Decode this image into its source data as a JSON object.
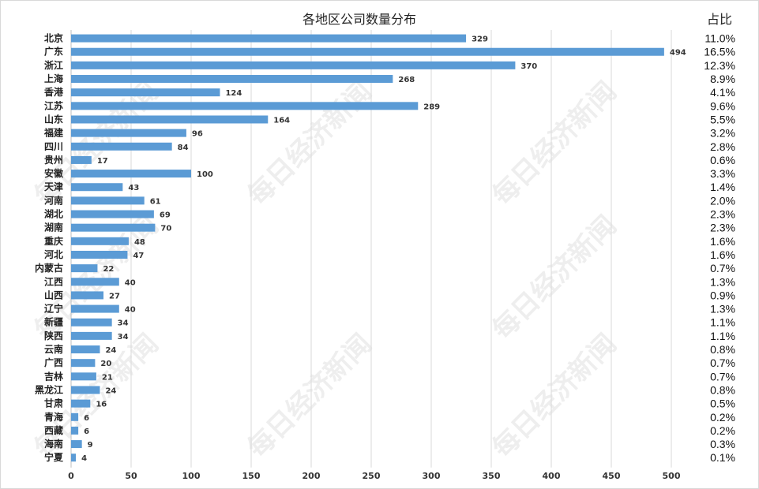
{
  "chart_data": {
    "type": "bar",
    "orientation": "horizontal",
    "title": "各地区公司数量分布",
    "share_header": "占比",
    "categories": [
      "北京",
      "广东",
      "浙江",
      "上海",
      "香港",
      "江苏",
      "山东",
      "福建",
      "四川",
      "贵州",
      "安徽",
      "天津",
      "河南",
      "湖北",
      "湖南",
      "重庆",
      "河北",
      "内蒙古",
      "江西",
      "山西",
      "辽宁",
      "新疆",
      "陕西",
      "云南",
      "广西",
      "吉林",
      "黑龙江",
      "甘肃",
      "青海",
      "西藏",
      "海南",
      "宁夏"
    ],
    "values": [
      329,
      494,
      370,
      268,
      124,
      289,
      164,
      96,
      84,
      17,
      100,
      43,
      61,
      69,
      70,
      48,
      47,
      22,
      40,
      27,
      40,
      34,
      34,
      24,
      20,
      21,
      24,
      16,
      6,
      6,
      9,
      4
    ],
    "shares": [
      "11.0%",
      "16.5%",
      "12.3%",
      "8.9%",
      "4.1%",
      "9.6%",
      "5.5%",
      "3.2%",
      "2.8%",
      "0.6%",
      "3.3%",
      "1.4%",
      "2.0%",
      "2.3%",
      "2.3%",
      "1.6%",
      "1.6%",
      "0.7%",
      "1.3%",
      "0.9%",
      "1.3%",
      "1.1%",
      "1.1%",
      "0.8%",
      "0.7%",
      "0.7%",
      "0.8%",
      "0.5%",
      "0.2%",
      "0.2%",
      "0.3%",
      "0.1%"
    ],
    "xlim": [
      0,
      500
    ],
    "x_ticks": [
      0,
      50,
      100,
      150,
      200,
      250,
      300,
      350,
      400,
      450,
      500
    ],
    "grid": true,
    "bar_color": "#5b9bd5",
    "watermark": "每日经济新闻"
  }
}
